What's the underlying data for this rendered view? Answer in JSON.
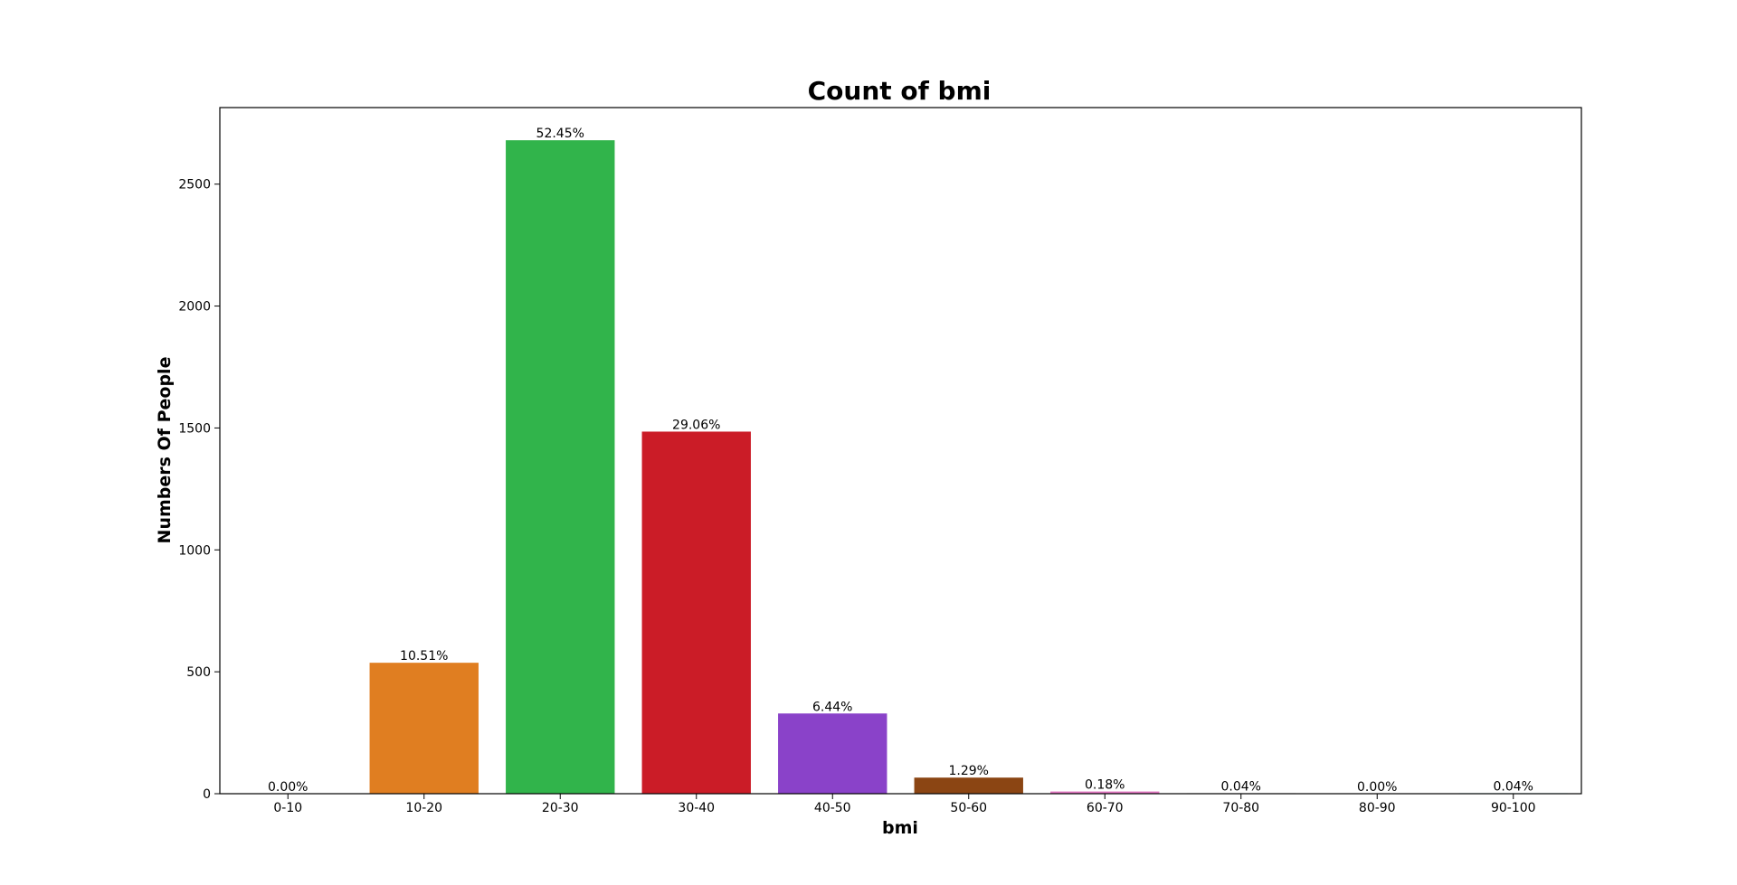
{
  "chart_data": {
    "type": "bar",
    "title": "Count of bmi",
    "xlabel": "bmi",
    "ylabel": "Numbers Of People",
    "categories": [
      "0-10",
      "10-20",
      "20-30",
      "30-40",
      "40-50",
      "50-60",
      "60-70",
      "70-80",
      "80-90",
      "90-100"
    ],
    "values": [
      0,
      537,
      2680,
      1485,
      329,
      66,
      9,
      2,
      0,
      2
    ],
    "data_labels": [
      "0.00%",
      "10.51%",
      "52.45%",
      "29.06%",
      "6.44%",
      "1.29%",
      "0.18%",
      "0.04%",
      "0.00%",
      "0.04%"
    ],
    "colors": [
      "#1f77b4",
      "#e07e21",
      "#31b44b",
      "#cb1c27",
      "#8a42c9",
      "#8b4513",
      "#e377c2",
      "#7f7f7f",
      "#bcbd22",
      "#17becf"
    ],
    "yticks": [
      0,
      500,
      1000,
      1500,
      2000,
      2500
    ],
    "ylim": [
      0,
      2814
    ],
    "grid": false,
    "legend": "none"
  }
}
